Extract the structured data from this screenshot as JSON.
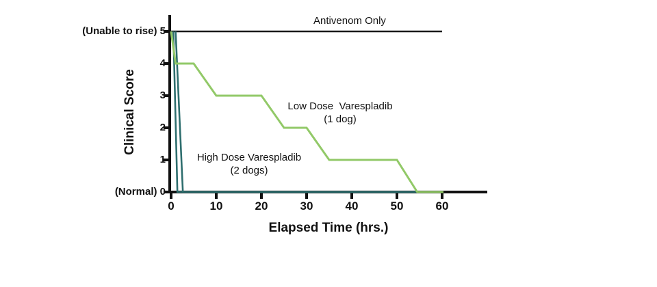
{
  "chart_data": {
    "type": "line",
    "title": "",
    "xlabel": "Elapsed Time (hrs.)",
    "ylabel": "Clinical Score",
    "xlim": [
      0,
      70
    ],
    "ylim": [
      0,
      5
    ],
    "grid": false,
    "legend_position": "inline-annotations",
    "x_ticks": [
      0,
      10,
      20,
      30,
      40,
      50,
      60
    ],
    "x_tick_labels": [
      "0",
      "10",
      "20",
      "30",
      "40",
      "50",
      "60"
    ],
    "y_ticks": [
      0,
      1,
      2,
      3,
      4,
      5
    ],
    "y_tick_labels_top_down": [
      "(Unable to rise) 5",
      "4",
      "3",
      "2",
      "1",
      "(Normal) 0"
    ],
    "colors": {
      "antivenom": "#1a1a1a",
      "low_dose": "#92C968",
      "high_dose": "#2E6E6E",
      "axis": "#111111"
    },
    "series": [
      {
        "id": "antivenom-only",
        "name": "Antivenom Only",
        "color": "#1a1a1a",
        "stroke_width": 2.6,
        "points": [
          [
            0,
            5
          ],
          [
            60,
            5
          ]
        ]
      },
      {
        "id": "high-dose-varespladib-dog-1",
        "name": "High Dose Varespladib (dog 1 of 2)",
        "color": "#2E6E6E",
        "stroke_width": 2.6,
        "points": [
          [
            0.5,
            5
          ],
          [
            1.4,
            0
          ],
          [
            60,
            0
          ]
        ]
      },
      {
        "id": "high-dose-varespladib-dog-2",
        "name": "High Dose Varespladib (dog 2 of 2)",
        "color": "#2E6E6E",
        "stroke_width": 2.6,
        "points": [
          [
            1,
            5
          ],
          [
            2.6,
            0
          ],
          [
            60,
            0
          ]
        ]
      },
      {
        "id": "low-dose-varespladib",
        "name": "Low Dose Varespladib (1 dog)",
        "color": "#92C968",
        "stroke_width": 3,
        "points": [
          [
            0,
            5
          ],
          [
            1,
            4
          ],
          [
            5,
            4
          ],
          [
            10,
            3
          ],
          [
            20,
            3
          ],
          [
            25,
            2
          ],
          [
            30,
            2
          ],
          [
            35,
            1
          ],
          [
            50,
            1
          ],
          [
            54.5,
            0
          ],
          [
            60.3,
            0
          ]
        ]
      }
    ],
    "annotations": {
      "antivenom": {
        "line1": "Antivenom Only",
        "line2": ""
      },
      "low_dose": {
        "line1": "Low Dose  Varespladib",
        "line2": "(1 dog)"
      },
      "high_dose": {
        "line1": "High Dose Varespladib",
        "line2": "(2 dogs)"
      }
    }
  }
}
